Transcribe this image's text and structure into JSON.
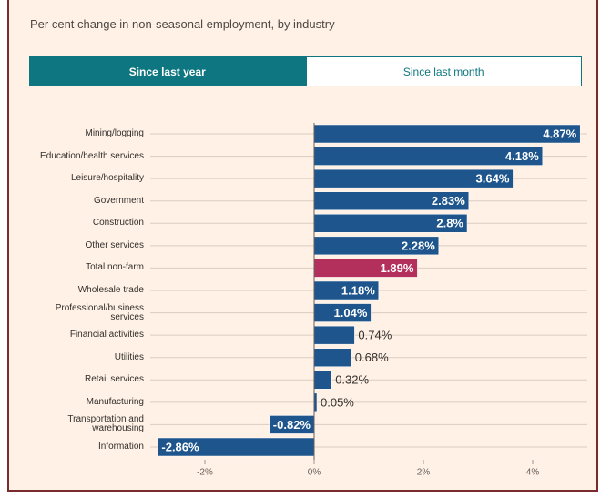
{
  "subtitle": "Per cent change in non-seasonal employment, by industry",
  "tabs": [
    {
      "label": "Since last year",
      "selected": true
    },
    {
      "label": "Since last month",
      "selected": false
    }
  ],
  "chart_data": {
    "type": "bar",
    "orientation": "horizontal",
    "categories": [
      "Mining/logging",
      "Education/health services",
      "Leisure/hospitality",
      "Government",
      "Construction",
      "Other services",
      "Total non-farm",
      "Wholesale trade",
      "Professional/business services",
      "Financial activities",
      "Utilities",
      "Retail services",
      "Manufacturing",
      "Transportation and warehousing",
      "Information"
    ],
    "values": [
      4.87,
      4.18,
      3.64,
      2.83,
      2.8,
      2.28,
      1.89,
      1.18,
      1.04,
      0.74,
      0.68,
      0.32,
      0.05,
      -0.82,
      -2.86
    ],
    "value_labels": [
      "4.87%",
      "4.18%",
      "3.64%",
      "2.83%",
      "2.8%",
      "2.28%",
      "1.89%",
      "1.18%",
      "1.04%",
      "0.74%",
      "0.68%",
      "0.32%",
      "0.05%",
      "-0.82%",
      "-2.86%"
    ],
    "colors": [
      "#1e558c",
      "#1e558c",
      "#1e558c",
      "#1e558c",
      "#1e558c",
      "#1e558c",
      "#b3305c",
      "#1e558c",
      "#1e558c",
      "#1e558c",
      "#1e558c",
      "#1e558c",
      "#1e558c",
      "#1e558c",
      "#1e558c"
    ],
    "xlim": [
      -3,
      5
    ],
    "xticks": [
      {
        "value": -2,
        "label": "-2%"
      },
      {
        "value": 0,
        "label": "0%"
      },
      {
        "value": 2,
        "label": "2%"
      },
      {
        "value": 4,
        "label": "4%"
      }
    ],
    "grid": true
  }
}
